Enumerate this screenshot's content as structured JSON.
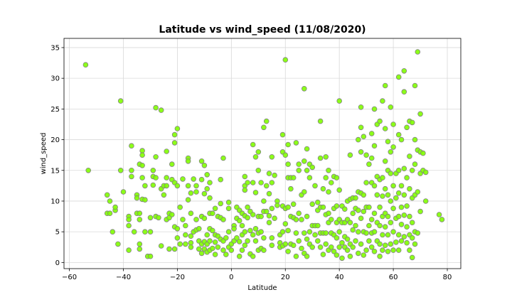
{
  "chart_data": {
    "type": "scatter",
    "title": "Latitude vs wind_speed (11/08/2020)",
    "xlabel": "Latitude",
    "ylabel": "wind_speed",
    "xlim": [
      -62,
      85
    ],
    "ylim": [
      -1,
      36.5
    ],
    "xticks": [
      -60,
      -40,
      -20,
      0,
      20,
      40,
      60,
      80
    ],
    "yticks": [
      0,
      5,
      10,
      15,
      20,
      25,
      30,
      35
    ],
    "grid": true,
    "marker_color": "#7fff00",
    "marker_edge": "#808080",
    "points": [
      [
        -54,
        32.2
      ],
      [
        -53,
        15
      ],
      [
        -46,
        11
      ],
      [
        -46,
        8
      ],
      [
        -45,
        10
      ],
      [
        -45,
        8
      ],
      [
        -44,
        5
      ],
      [
        -43,
        8.5
      ],
      [
        -43,
        9
      ],
      [
        -42,
        3
      ],
      [
        -41,
        26.3
      ],
      [
        -41,
        15
      ],
      [
        -40,
        11.5
      ],
      [
        -38,
        7.5
      ],
      [
        -38,
        7
      ],
      [
        -38,
        6
      ],
      [
        -38,
        2
      ],
      [
        -37,
        19
      ],
      [
        -37,
        15
      ],
      [
        -37,
        14
      ],
      [
        -36,
        5
      ],
      [
        -35,
        11
      ],
      [
        -35,
        10.5
      ],
      [
        -35,
        8
      ],
      [
        -34,
        16
      ],
      [
        -34,
        8
      ],
      [
        -34,
        7
      ],
      [
        -34,
        3
      ],
      [
        -34,
        2.2
      ],
      [
        -33,
        18.2
      ],
      [
        -33,
        17.5
      ],
      [
        -33,
        15.8
      ],
      [
        -33,
        13.8
      ],
      [
        -33,
        10.3
      ],
      [
        -32,
        12.5
      ],
      [
        -32,
        10.2
      ],
      [
        -32,
        5
      ],
      [
        -31,
        1
      ],
      [
        -30,
        7.3
      ],
      [
        -30,
        5
      ],
      [
        -30,
        1
      ],
      [
        -29,
        15
      ],
      [
        -29,
        14
      ],
      [
        -29,
        12.6
      ],
      [
        -28,
        25.2
      ],
      [
        -28,
        17.2
      ],
      [
        -28,
        13.8
      ],
      [
        -28,
        7.5
      ],
      [
        -27,
        7.3
      ],
      [
        -26,
        24.8
      ],
      [
        -26,
        12
      ],
      [
        -26,
        2.7
      ],
      [
        -25,
        12.5
      ],
      [
        -25,
        11
      ],
      [
        -24,
        18.1
      ],
      [
        -24,
        13.8
      ],
      [
        -24,
        12.5
      ],
      [
        -24,
        7
      ],
      [
        -23,
        8
      ],
      [
        -23,
        7.3
      ],
      [
        -23,
        2.2
      ],
      [
        -22,
        16
      ],
      [
        -22,
        13.5
      ],
      [
        -22,
        7.8
      ],
      [
        -21,
        20.8
      ],
      [
        -21,
        19.5
      ],
      [
        -21,
        13
      ],
      [
        -21,
        5.8
      ],
      [
        -21,
        2.2
      ],
      [
        -20,
        21.8
      ],
      [
        -20,
        12.5
      ],
      [
        -20,
        5.5
      ],
      [
        -20,
        4
      ],
      [
        -19,
        9
      ],
      [
        -19,
        3
      ],
      [
        -18,
        13.6
      ],
      [
        -18,
        7
      ],
      [
        -17,
        6
      ],
      [
        -17,
        4.5
      ],
      [
        -17,
        3
      ],
      [
        -16,
        17
      ],
      [
        -16,
        16.5
      ],
      [
        -16,
        12.5
      ],
      [
        -16,
        10.2
      ],
      [
        -15,
        11.3
      ],
      [
        -15,
        8
      ],
      [
        -15,
        4.3
      ],
      [
        -15,
        3.2
      ],
      [
        -15,
        2.5
      ],
      [
        -14,
        13.6
      ],
      [
        -14,
        5
      ],
      [
        -13,
        12.5
      ],
      [
        -13,
        11.5
      ],
      [
        -13,
        7
      ],
      [
        -13,
        5.3
      ],
      [
        -12,
        5.5
      ],
      [
        -12,
        3.5
      ],
      [
        -12,
        2.2
      ],
      [
        -11,
        16.5
      ],
      [
        -11,
        13.5
      ],
      [
        -11,
        7.5
      ],
      [
        -11,
        3
      ],
      [
        -11,
        1.5
      ],
      [
        -10,
        15.8
      ],
      [
        -10,
        11.2
      ],
      [
        -10,
        7.2
      ],
      [
        -10,
        3.4
      ],
      [
        -10,
        2.2
      ],
      [
        -9,
        14.3
      ],
      [
        -9,
        12
      ],
      [
        -9,
        4.5
      ],
      [
        -9,
        3
      ],
      [
        -9,
        1.7
      ],
      [
        -8,
        13
      ],
      [
        -8,
        10.5
      ],
      [
        -8,
        8
      ],
      [
        -8,
        5.5
      ],
      [
        -8,
        3.5
      ],
      [
        -8,
        2
      ],
      [
        -7,
        8
      ],
      [
        -7,
        5.2
      ],
      [
        -7,
        2.3
      ],
      [
        -6,
        8.8
      ],
      [
        -6,
        4.5
      ],
      [
        -6,
        3.3
      ],
      [
        -6,
        1.3
      ],
      [
        -5,
        7.5
      ],
      [
        -5,
        4.3
      ],
      [
        -5,
        2.5
      ],
      [
        -4,
        13.5
      ],
      [
        -4,
        9.6
      ],
      [
        -4,
        7.3
      ],
      [
        -4,
        3.8
      ],
      [
        -3,
        17
      ],
      [
        -3,
        7
      ],
      [
        -3,
        3.5
      ],
      [
        -3,
        2
      ],
      [
        -2,
        4
      ],
      [
        -2,
        1.3
      ],
      [
        -1,
        9.8
      ],
      [
        -1,
        8.8
      ],
      [
        -1,
        5
      ],
      [
        -1,
        2.5
      ],
      [
        0,
        3
      ],
      [
        0,
        2
      ],
      [
        1,
        6
      ],
      [
        1,
        5.5
      ],
      [
        1,
        3.5
      ],
      [
        2,
        9
      ],
      [
        2,
        7.2
      ],
      [
        2,
        4
      ],
      [
        3,
        8.5
      ],
      [
        3,
        6.8
      ],
      [
        3,
        3.4
      ],
      [
        3,
        1
      ],
      [
        4,
        8
      ],
      [
        4,
        6
      ],
      [
        4,
        4.5
      ],
      [
        4,
        2
      ],
      [
        5,
        14
      ],
      [
        5,
        12.5
      ],
      [
        5,
        11.8
      ],
      [
        5,
        7.6
      ],
      [
        5,
        5
      ],
      [
        5,
        2.8
      ],
      [
        6,
        13
      ],
      [
        6,
        9
      ],
      [
        6,
        7.3
      ],
      [
        6,
        3.5
      ],
      [
        7,
        8.3
      ],
      [
        7,
        5.2
      ],
      [
        7,
        1.4
      ],
      [
        8,
        19.2
      ],
      [
        8,
        13
      ],
      [
        8,
        7.8
      ],
      [
        8,
        4.5
      ],
      [
        8,
        1
      ],
      [
        9,
        17.2
      ],
      [
        9,
        11.4
      ],
      [
        9,
        5.5
      ],
      [
        9,
        3.5
      ],
      [
        10,
        18
      ],
      [
        10,
        15
      ],
      [
        10,
        7.5
      ],
      [
        10,
        4.8
      ],
      [
        10,
        2
      ],
      [
        11,
        13
      ],
      [
        11,
        7.5
      ],
      [
        11,
        5
      ],
      [
        11,
        2.3
      ],
      [
        12,
        22
      ],
      [
        12,
        10
      ],
      [
        12,
        8.3
      ],
      [
        12,
        4
      ],
      [
        12,
        2
      ],
      [
        13,
        23
      ],
      [
        13,
        12.5
      ],
      [
        13,
        8.3
      ],
      [
        14,
        14.5
      ],
      [
        14,
        11.2
      ],
      [
        14,
        7.6
      ],
      [
        14,
        6.5
      ],
      [
        15,
        17.2
      ],
      [
        15,
        13
      ],
      [
        15,
        8.8
      ],
      [
        15,
        4
      ],
      [
        15,
        2.8
      ],
      [
        16,
        14.2
      ],
      [
        16,
        7.2
      ],
      [
        17,
        10
      ],
      [
        17,
        9.3
      ],
      [
        18,
        4.5
      ],
      [
        18,
        3.2
      ],
      [
        18,
        2.5
      ],
      [
        19,
        20.8
      ],
      [
        19,
        18
      ],
      [
        19,
        9.2
      ],
      [
        19,
        5
      ],
      [
        19,
        2.7
      ],
      [
        20,
        33
      ],
      [
        20,
        17.5
      ],
      [
        20,
        8.8
      ],
      [
        20,
        6.3
      ],
      [
        20,
        3
      ],
      [
        21,
        19.2
      ],
      [
        21,
        16
      ],
      [
        21,
        13.8
      ],
      [
        21,
        9
      ],
      [
        21,
        5.2
      ],
      [
        21,
        1.8
      ],
      [
        22,
        13.8
      ],
      [
        22,
        12
      ],
      [
        22,
        7.5
      ],
      [
        22,
        3
      ],
      [
        23,
        13.8
      ],
      [
        23,
        9.5
      ],
      [
        23,
        7.3
      ],
      [
        23,
        2.8
      ],
      [
        24,
        19.5
      ],
      [
        24,
        7
      ],
      [
        24,
        4.8
      ],
      [
        24,
        1
      ],
      [
        25,
        16
      ],
      [
        25,
        15
      ],
      [
        25,
        8
      ],
      [
        25,
        3.5
      ],
      [
        26,
        11
      ],
      [
        26,
        7
      ],
      [
        26,
        2.3
      ],
      [
        27,
        28.3
      ],
      [
        27,
        16.5
      ],
      [
        27,
        11.5
      ],
      [
        27,
        4.8
      ],
      [
        27,
        1.5
      ],
      [
        28,
        18.5
      ],
      [
        28,
        15
      ],
      [
        28,
        7.5
      ],
      [
        28,
        3.8
      ],
      [
        28,
        1
      ],
      [
        29,
        16
      ],
      [
        29,
        13.8
      ],
      [
        29,
        5
      ],
      [
        29,
        3
      ],
      [
        30,
        15.5
      ],
      [
        30,
        9.5
      ],
      [
        30,
        6
      ],
      [
        30,
        2.5
      ],
      [
        31,
        12.5
      ],
      [
        31,
        6
      ],
      [
        31,
        4.5
      ],
      [
        32,
        9.8
      ],
      [
        32,
        8.5
      ],
      [
        32,
        6
      ],
      [
        32,
        3.5
      ],
      [
        33,
        23
      ],
      [
        33,
        17
      ],
      [
        33,
        9
      ],
      [
        33,
        4.8
      ],
      [
        33,
        2.5
      ],
      [
        34,
        12
      ],
      [
        34,
        9
      ],
      [
        34,
        4.8
      ],
      [
        34,
        1.3
      ],
      [
        35,
        17.2
      ],
      [
        35,
        13.8
      ],
      [
        35,
        7.8
      ],
      [
        35,
        4.8
      ],
      [
        35,
        3
      ],
      [
        36,
        15
      ],
      [
        36,
        11.5
      ],
      [
        36,
        8
      ],
      [
        36,
        6.5
      ],
      [
        36,
        2
      ],
      [
        37,
        13
      ],
      [
        37,
        7
      ],
      [
        37,
        4.8
      ],
      [
        37,
        2.5
      ],
      [
        38,
        14
      ],
      [
        38,
        8.8
      ],
      [
        38,
        4.5
      ],
      [
        38,
        1.8
      ],
      [
        39,
        13.8
      ],
      [
        39,
        9.2
      ],
      [
        39,
        6.5
      ],
      [
        39,
        4
      ],
      [
        39,
        1.2
      ],
      [
        40,
        26.3
      ],
      [
        40,
        11.8
      ],
      [
        40,
        7
      ],
      [
        40,
        5
      ],
      [
        40,
        2.5
      ],
      [
        41,
        9.2
      ],
      [
        41,
        6.5
      ],
      [
        41,
        3.2
      ],
      [
        41,
        0.7
      ],
      [
        42,
        8.7
      ],
      [
        42,
        6.5
      ],
      [
        42,
        4.2
      ],
      [
        42,
        2.5
      ],
      [
        43,
        10
      ],
      [
        43,
        7
      ],
      [
        43,
        3.8
      ],
      [
        43,
        2
      ],
      [
        44,
        17.5
      ],
      [
        44,
        10.3
      ],
      [
        44,
        6.5
      ],
      [
        44,
        3
      ],
      [
        44,
        1
      ],
      [
        45,
        10.5
      ],
      [
        45,
        8
      ],
      [
        45,
        5.3
      ],
      [
        45,
        2.5
      ],
      [
        46,
        10.5
      ],
      [
        46,
        8.8
      ],
      [
        46,
        6
      ],
      [
        46,
        3.5
      ],
      [
        47,
        20
      ],
      [
        47,
        11.5
      ],
      [
        47,
        8.5
      ],
      [
        47,
        5
      ],
      [
        47,
        1.5
      ],
      [
        48,
        25.3
      ],
      [
        48,
        22
      ],
      [
        48,
        18
      ],
      [
        48,
        11.3
      ],
      [
        48,
        7.2
      ],
      [
        48,
        3
      ],
      [
        49,
        20.5
      ],
      [
        49,
        11
      ],
      [
        49,
        8.3
      ],
      [
        49,
        5
      ],
      [
        49,
        1.2
      ],
      [
        50,
        17.5
      ],
      [
        50,
        13
      ],
      [
        50,
        9
      ],
      [
        50,
        4.8
      ],
      [
        50,
        2
      ],
      [
        51,
        16
      ],
      [
        51,
        9
      ],
      [
        51,
        6
      ],
      [
        51,
        3.5
      ],
      [
        52,
        21
      ],
      [
        52,
        17
      ],
      [
        52,
        13
      ],
      [
        52,
        7
      ],
      [
        52,
        4.8
      ],
      [
        52,
        2.5
      ],
      [
        53,
        25
      ],
      [
        53,
        19
      ],
      [
        53,
        12.5
      ],
      [
        53,
        8
      ],
      [
        53,
        5
      ],
      [
        53,
        1.8
      ],
      [
        54,
        22.5
      ],
      [
        54,
        14
      ],
      [
        54,
        11
      ],
      [
        54,
        6.5
      ],
      [
        54,
        3.5
      ],
      [
        55,
        23
      ],
      [
        55,
        13.5
      ],
      [
        55,
        9
      ],
      [
        55,
        6
      ],
      [
        55,
        3
      ],
      [
        55,
        1
      ],
      [
        56,
        26.3
      ],
      [
        56,
        13.8
      ],
      [
        56,
        10.8
      ],
      [
        56,
        7.5
      ],
      [
        56,
        4.5
      ],
      [
        56,
        2
      ],
      [
        57,
        28.8
      ],
      [
        57,
        21.8
      ],
      [
        57,
        16.5
      ],
      [
        57,
        12
      ],
      [
        57,
        8
      ],
      [
        57,
        5.8
      ],
      [
        57,
        2.8
      ],
      [
        58,
        19.7
      ],
      [
        58,
        15
      ],
      [
        58,
        11
      ],
      [
        58,
        7.5
      ],
      [
        58,
        4.5
      ],
      [
        58,
        1.8
      ],
      [
        59,
        25.3
      ],
      [
        59,
        18
      ],
      [
        59,
        14.5
      ],
      [
        59,
        10
      ],
      [
        59,
        6.5
      ],
      [
        59,
        3
      ],
      [
        60,
        22.5
      ],
      [
        60,
        18.8
      ],
      [
        60,
        12.5
      ],
      [
        60,
        8.8
      ],
      [
        60,
        5
      ],
      [
        60,
        2
      ],
      [
        61,
        14.5
      ],
      [
        61,
        10.5
      ],
      [
        61,
        7.2
      ],
      [
        61,
        3.3
      ],
      [
        62,
        30.2
      ],
      [
        62,
        20.8
      ],
      [
        62,
        15
      ],
      [
        62,
        11.3
      ],
      [
        62,
        7.5
      ],
      [
        62,
        4.5
      ],
      [
        62,
        2
      ],
      [
        63,
        20
      ],
      [
        63,
        12.5
      ],
      [
        63,
        9
      ],
      [
        63,
        6.2
      ],
      [
        63,
        3.5
      ],
      [
        64,
        31.2
      ],
      [
        64,
        27.8
      ],
      [
        64,
        15.3
      ],
      [
        64,
        11
      ],
      [
        64,
        7.7
      ],
      [
        64,
        4.2
      ],
      [
        65,
        22
      ],
      [
        65,
        13.8
      ],
      [
        65,
        9.2
      ],
      [
        65,
        5.8
      ],
      [
        65,
        3.2
      ],
      [
        66,
        23
      ],
      [
        66,
        17.3
      ],
      [
        66,
        12
      ],
      [
        66,
        7.5
      ],
      [
        66,
        4.5
      ],
      [
        66,
        2
      ],
      [
        67,
        22.8
      ],
      [
        67,
        15
      ],
      [
        67,
        10.5
      ],
      [
        67,
        6.5
      ],
      [
        67,
        4
      ],
      [
        67,
        0.8
      ],
      [
        68,
        28.8
      ],
      [
        68,
        20
      ],
      [
        68,
        16
      ],
      [
        68,
        11
      ],
      [
        68,
        5
      ],
      [
        68,
        3
      ],
      [
        69,
        34.3
      ],
      [
        69,
        18.3
      ],
      [
        69,
        11.5
      ],
      [
        69,
        4.8
      ],
      [
        70,
        24.2
      ],
      [
        70,
        18
      ],
      [
        70,
        14.5
      ],
      [
        70,
        8.3
      ],
      [
        71,
        17.8
      ],
      [
        71,
        15
      ],
      [
        72,
        14.7
      ],
      [
        72,
        10
      ],
      [
        77,
        7.8
      ],
      [
        78,
        7
      ]
    ]
  }
}
